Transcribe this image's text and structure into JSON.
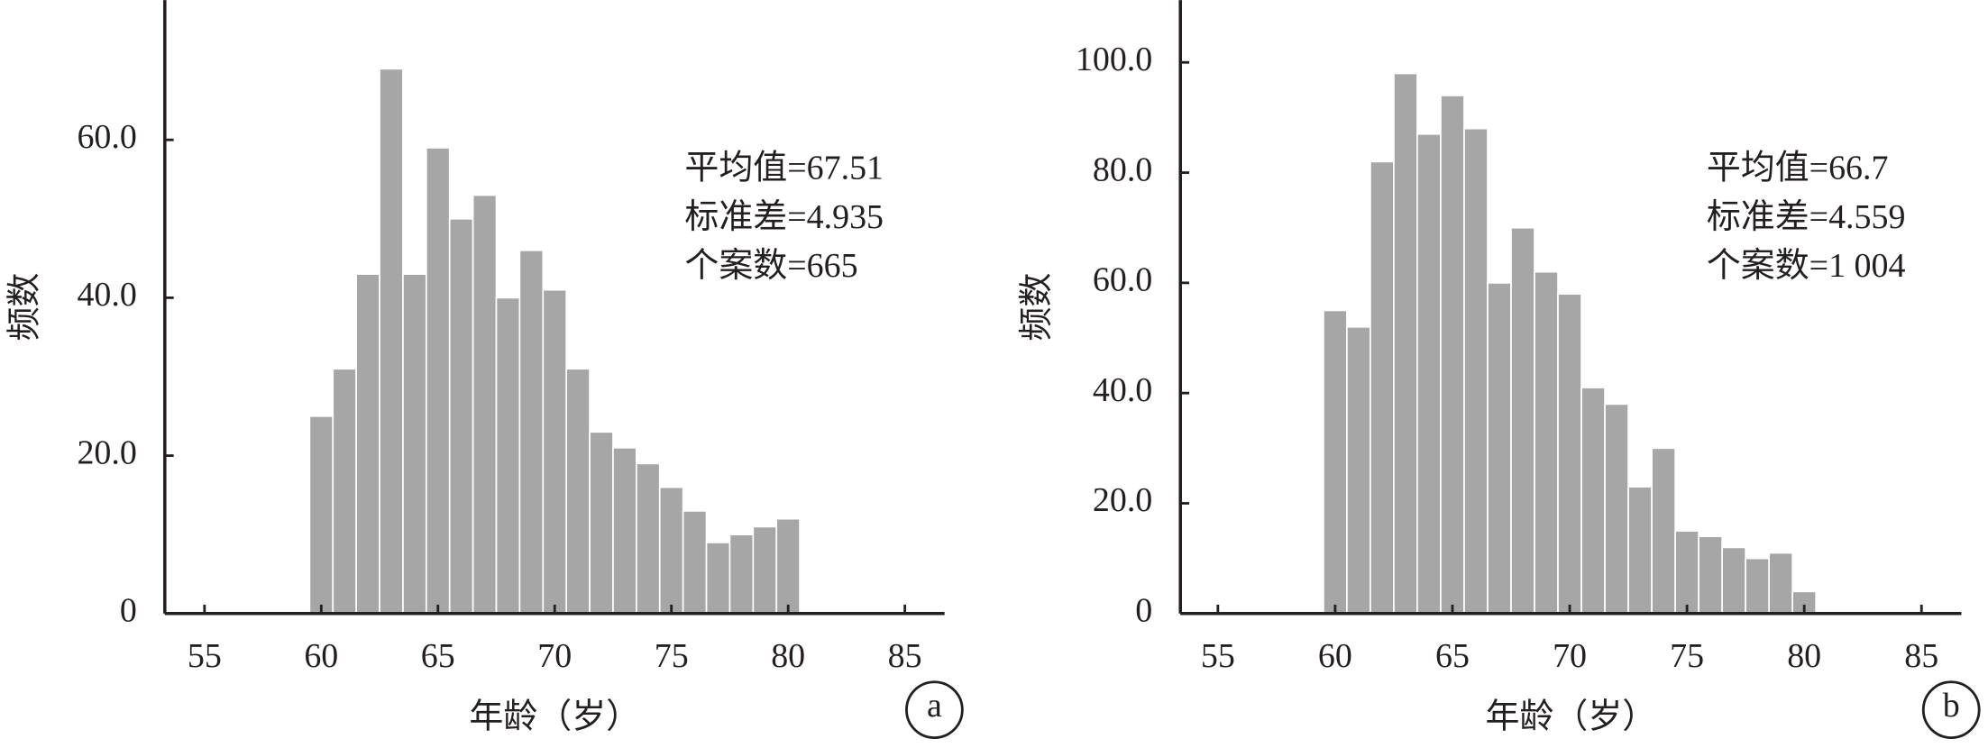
{
  "chart_data": [
    {
      "type": "histogram",
      "x_label": "年龄（岁）",
      "y_label": "频数",
      "bins": [
        59.5,
        60.5,
        61.5,
        62.5,
        63.5,
        64.5,
        65.5,
        66.5,
        67.5,
        68.5,
        69.5,
        70.5,
        71.5,
        72.5,
        73.5,
        74.5,
        75.5,
        76.5,
        77.5,
        78.5,
        79.5,
        80.5
      ],
      "values": [
        25,
        31,
        43,
        69,
        43,
        59,
        50,
        53,
        40,
        46,
        41,
        31,
        23,
        21,
        19,
        16,
        13,
        9,
        10,
        11,
        12
      ],
      "color": "#a6a6a6",
      "xlim": [
        53.3,
        86.7
      ],
      "xticks": [
        55,
        60,
        65,
        70,
        75,
        80,
        85
      ],
      "ylim": [
        0,
        77.7
      ],
      "yticks": [
        0,
        {
          "value": 20,
          "label": "20.0"
        },
        {
          "value": 40,
          "label": "40.0"
        },
        {
          "value": 60,
          "label": "60.0"
        }
      ],
      "annotations": [
        "平均值=67.51",
        "标准差=4.935",
        "个案数=665"
      ],
      "panel_label": "a"
    },
    {
      "type": "histogram",
      "x_label": "年龄（岁）",
      "y_label": "频数",
      "bins": [
        59.5,
        60.5,
        61.5,
        62.5,
        63.5,
        64.5,
        65.5,
        66.5,
        67.5,
        68.5,
        69.5,
        70.5,
        71.5,
        72.5,
        73.5,
        74.5,
        75.5,
        76.5,
        77.5,
        78.5,
        79.5,
        80.5
      ],
      "values": [
        55,
        52,
        82,
        98,
        87,
        94,
        88,
        60,
        70,
        62,
        58,
        41,
        38,
        23,
        30,
        15,
        14,
        12,
        10,
        11,
        4
      ],
      "color": "#a6a6a6",
      "xlim": [
        53.4,
        86.7
      ],
      "xticks": [
        55,
        60,
        65,
        70,
        75,
        80,
        85
      ],
      "ylim": [
        0,
        111.3
      ],
      "yticks": [
        0,
        {
          "value": 20,
          "label": "20.0"
        },
        {
          "value": 40,
          "label": "40.0"
        },
        {
          "value": 60,
          "label": "60.0"
        },
        {
          "value": 80,
          "label": "80.0"
        },
        {
          "value": 100,
          "label": "100.0"
        }
      ],
      "annotations": [
        "平均值=66.7",
        "标准差=4.559",
        "个案数=1 004"
      ],
      "panel_label": "b"
    }
  ]
}
